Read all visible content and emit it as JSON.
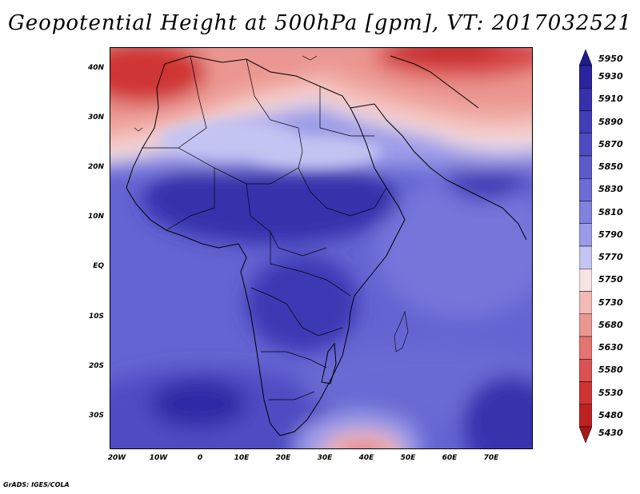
{
  "title": "Geopotential Height at 500hPa [gpm], VT: 2017032521",
  "credit": "GrADS: IGES/COLA",
  "latitude_labels": [
    "40N",
    "30N",
    "20N",
    "10N",
    "EQ",
    "10S",
    "20S",
    "30S"
  ],
  "longitude_labels": [
    "20W",
    "10W",
    "0",
    "10E",
    "20E",
    "30E",
    "40E",
    "50E",
    "60E",
    "70E"
  ],
  "colorbar": {
    "labels": [
      "5950",
      "5930",
      "5910",
      "5890",
      "5870",
      "5850",
      "5830",
      "5810",
      "5790",
      "5770",
      "5750",
      "5730",
      "5680",
      "5630",
      "5580",
      "5530",
      "5480",
      "5430"
    ],
    "colors": [
      "#201b8f",
      "#2a249f",
      "#3630ac",
      "#423db9",
      "#4f4cc2",
      "#5c5bcb",
      "#6c6cd5",
      "#8080de",
      "#9b9be8",
      "#c4c4f2",
      "#f6e3e3",
      "#f3b9b4",
      "#eb9690",
      "#e57370",
      "#dc5151",
      "#cf3434",
      "#bd2222",
      "#a41818"
    ]
  }
}
